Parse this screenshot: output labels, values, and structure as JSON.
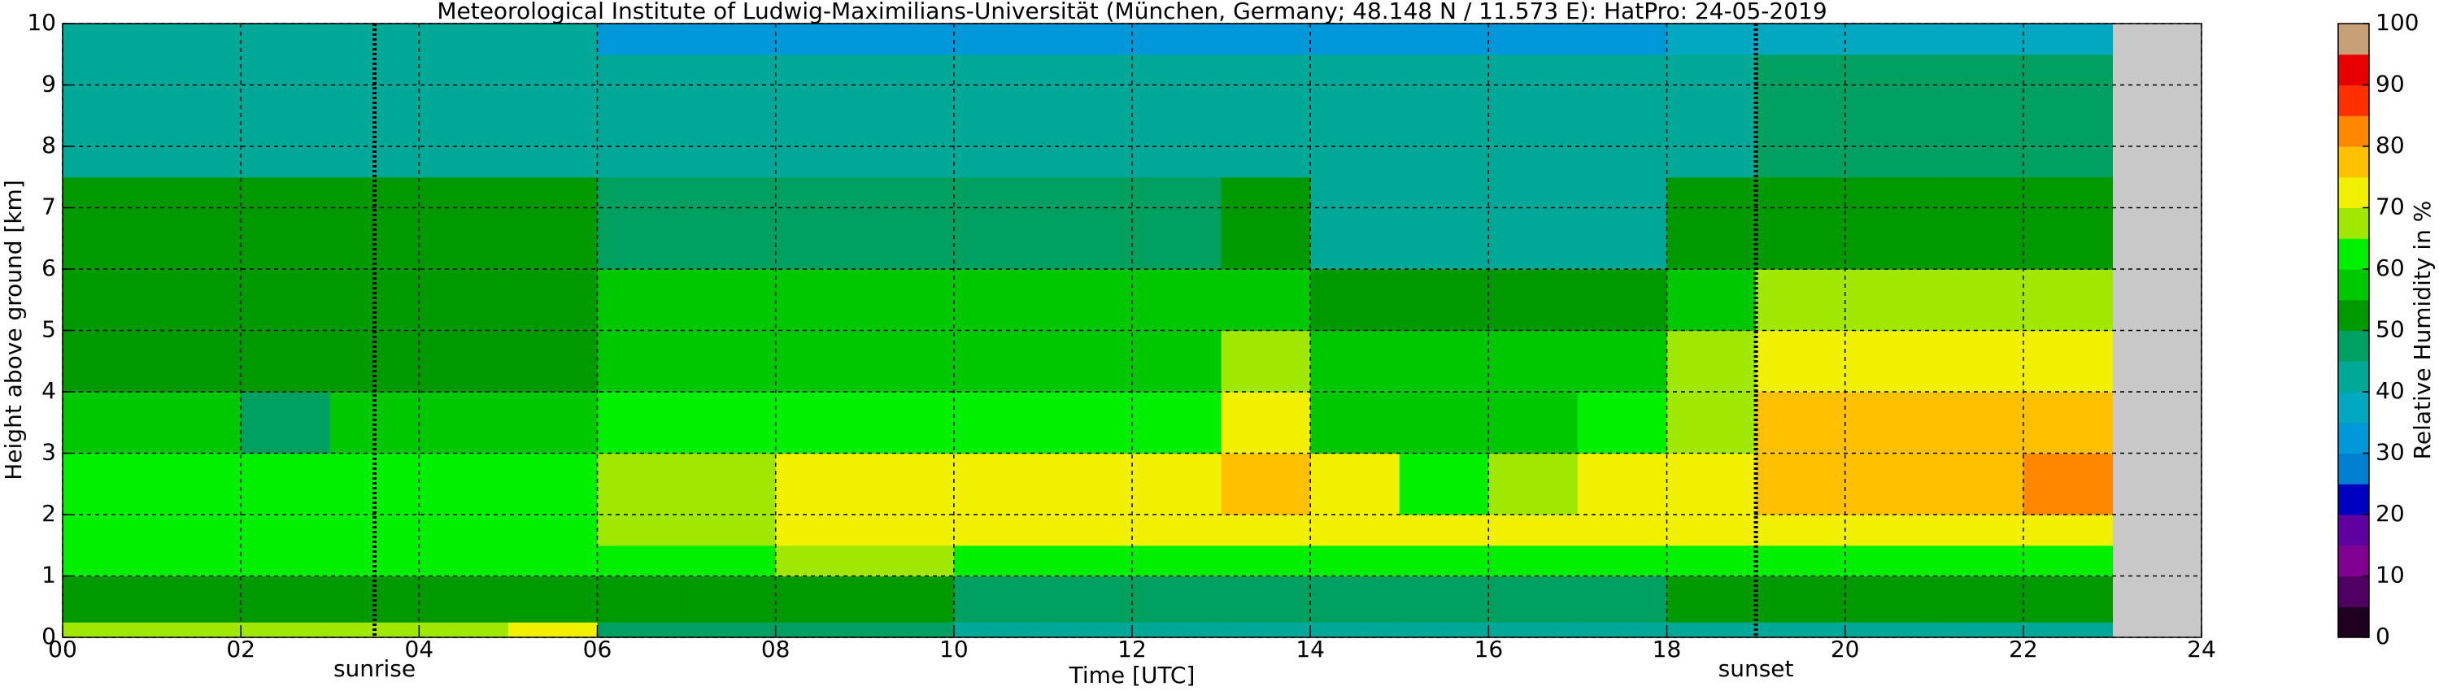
{
  "chart_data": {
    "type": "heatmap",
    "title": "Meteorological Institute of Ludwig-Maximilians-Universität (München, Germany; 48.148 N / 11.573 E):    HatPro: 24-05-2019",
    "x_label": "Time [UTC]",
    "y_label": "Height above ground [km]",
    "x": [
      0,
      1,
      2,
      3,
      4,
      5,
      6,
      7,
      8,
      9,
      10,
      11,
      12,
      13,
      14,
      15,
      16,
      17,
      18,
      19,
      20,
      21,
      22,
      23
    ],
    "y": [
      0,
      0.25,
      1,
      1.5,
      2,
      3,
      4,
      5,
      6,
      7.5,
      9.5,
      10
    ],
    "values": [
      [
        68,
        68,
        68,
        68,
        68,
        72,
        47,
        47,
        47,
        47,
        44,
        44,
        44,
        44,
        44,
        44,
        44,
        44,
        42,
        42,
        42,
        42,
        42
      ],
      [
        52,
        52,
        52,
        52,
        52,
        52,
        50,
        50,
        50,
        50,
        48,
        48,
        48,
        48,
        48,
        48,
        48,
        48,
        50,
        50,
        50,
        50,
        50
      ],
      [
        60,
        60,
        60,
        60,
        60,
        60,
        64,
        64,
        66,
        66,
        62,
        62,
        62,
        64,
        62,
        62,
        62,
        62,
        64,
        64,
        64,
        64,
        64
      ],
      [
        62,
        62,
        62,
        62,
        62,
        62,
        68,
        68,
        70,
        70,
        70,
        70,
        70,
        74,
        70,
        70,
        70,
        70,
        72,
        74,
        74,
        74,
        74
      ],
      [
        60,
        60,
        60,
        60,
        60,
        60,
        66,
        66,
        70,
        70,
        71,
        71,
        71,
        77,
        71,
        60,
        65,
        71,
        74,
        77,
        77,
        77,
        80
      ],
      [
        57,
        57,
        45,
        57,
        57,
        57,
        60,
        60,
        60,
        60,
        60,
        60,
        60,
        72,
        58,
        55,
        55,
        60,
        68,
        75,
        75,
        75,
        75
      ],
      [
        53,
        53,
        53,
        53,
        53,
        53,
        57,
        57,
        57,
        57,
        57,
        57,
        57,
        65,
        55,
        55,
        55,
        55,
        65,
        72,
        72,
        72,
        72
      ],
      [
        52,
        52,
        52,
        52,
        52,
        52,
        55,
        55,
        55,
        55,
        55,
        55,
        55,
        58,
        54,
        54,
        54,
        54,
        58,
        65,
        65,
        65,
        65
      ],
      [
        51,
        51,
        51,
        51,
        51,
        51,
        49,
        49,
        49,
        49,
        49,
        49,
        49,
        52,
        44,
        44,
        44,
        44,
        50,
        53,
        53,
        53,
        53
      ],
      [
        44,
        44,
        44,
        44,
        44,
        44,
        41,
        41,
        41,
        41,
        41,
        41,
        40,
        40,
        40,
        40,
        40,
        40,
        42,
        47,
        47,
        47,
        47
      ],
      [
        41,
        41,
        41,
        41,
        41,
        41,
        34,
        34,
        34,
        34,
        34,
        34,
        34,
        34,
        34,
        34,
        34,
        34,
        38,
        38,
        38,
        38,
        38
      ]
    ],
    "xlim": [
      0,
      24
    ],
    "ylim": [
      0,
      10
    ],
    "xticks": [
      {
        "value": 0,
        "label": "00"
      },
      {
        "value": 2,
        "label": "02"
      },
      {
        "value": 4,
        "label": "04"
      },
      {
        "value": 6,
        "label": "06"
      },
      {
        "value": 8,
        "label": "08"
      },
      10,
      12,
      14,
      16,
      18,
      20,
      22,
      24
    ],
    "yticks": [
      0,
      1,
      2,
      3,
      4,
      5,
      6,
      7,
      8,
      9,
      10
    ],
    "grid": true,
    "annotations": [
      {
        "x": 3.5,
        "label": "sunrise"
      },
      {
        "x": 19,
        "label": "sunset"
      }
    ],
    "colorbar": {
      "label": "Relative Humidity in %",
      "levels": [
        0,
        5,
        10,
        15,
        20,
        25,
        30,
        35,
        40,
        45,
        50,
        55,
        60,
        65,
        70,
        75,
        80,
        85,
        90,
        95,
        100
      ],
      "colors": [
        "#200020",
        "#500060",
        "#800090",
        "#6000a0",
        "#0000c0",
        "#0080d0",
        "#0098d8",
        "#00a8c0",
        "#00a898",
        "#00a060",
        "#009900",
        "#00c800",
        "#00f000",
        "#a0e800",
        "#f0f000",
        "#ffc000",
        "#ff8800",
        "#ff3000",
        "#e80000",
        "#c8a078"
      ],
      "ticks": [
        0,
        10,
        20,
        30,
        40,
        50,
        60,
        70,
        80,
        90,
        100
      ]
    }
  }
}
